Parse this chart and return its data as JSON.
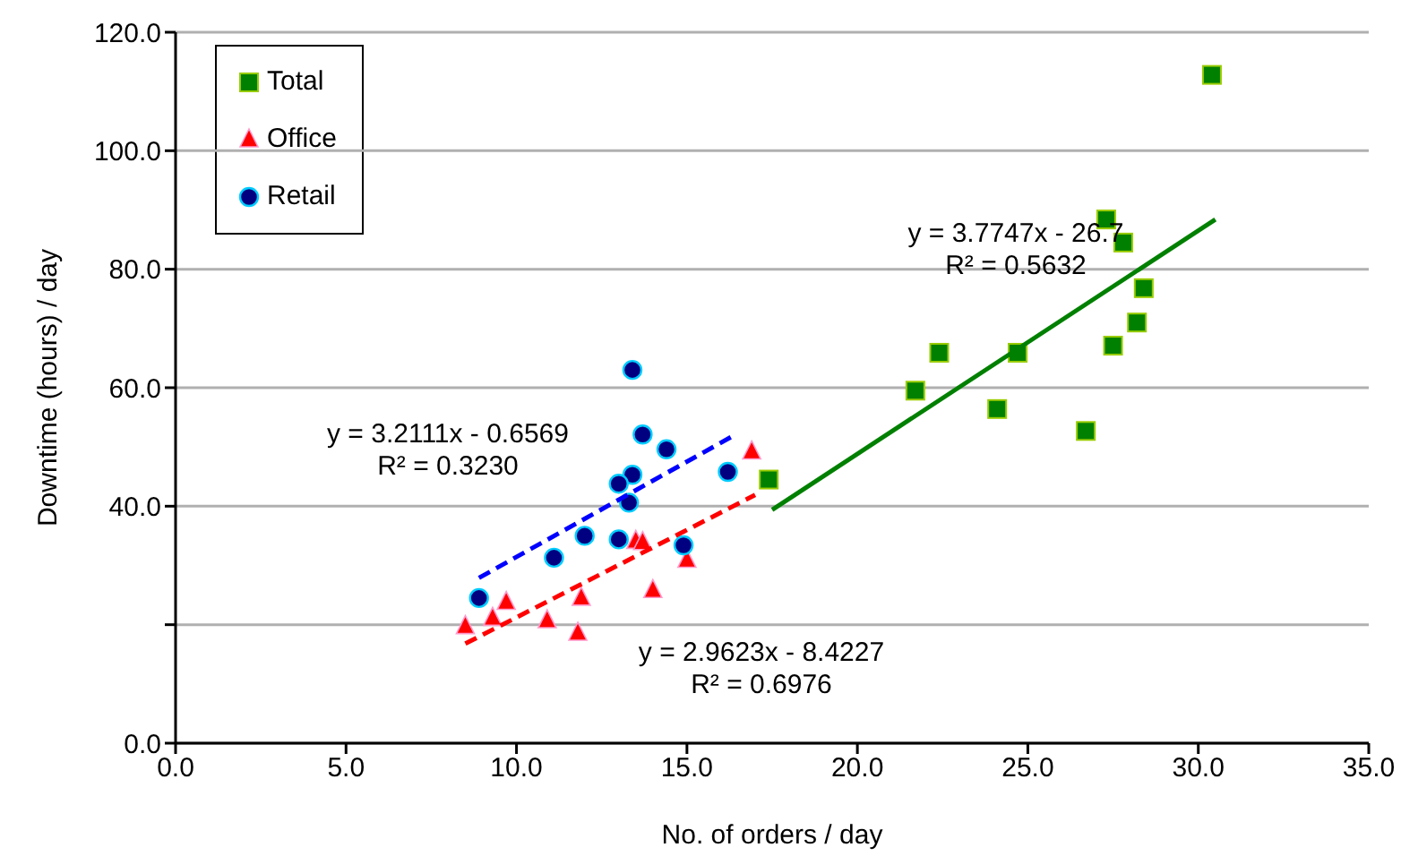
{
  "chart_data": {
    "type": "scatter",
    "xlabel": "No. of orders / day",
    "ylabel": "Downtime (hours) / day",
    "xlim": [
      0,
      35
    ],
    "xticks": [
      {
        "value": 0,
        "label": "0.0"
      },
      {
        "value": 5,
        "label": "5.0"
      },
      {
        "value": 10,
        "label": "10.0"
      },
      {
        "value": 15,
        "label": "15.0"
      },
      {
        "value": 20,
        "label": "20.0"
      },
      {
        "value": 25,
        "label": "25.0"
      },
      {
        "value": 30,
        "label": "30.0"
      },
      {
        "value": 35,
        "label": "35.0"
      }
    ],
    "ylim": [
      0,
      120
    ],
    "yticks": [
      {
        "value": 0,
        "label": "0.0"
      },
      {
        "value": 20,
        "label": null
      },
      {
        "value": 40,
        "label": "40.0"
      },
      {
        "value": 60,
        "label": "60.0"
      },
      {
        "value": 80,
        "label": "80.0"
      },
      {
        "value": 100,
        "label": "100.0"
      },
      {
        "value": 120,
        "label": "120.0"
      }
    ],
    "grid": "y",
    "legend": "top left",
    "series": [
      {
        "name": "Total",
        "color": "#008000",
        "marker": "square",
        "x": [
          17.4,
          21.7,
          22.4,
          24.1,
          24.7,
          26.7,
          27.3,
          27.5,
          27.8,
          28.2,
          28.4,
          30.4
        ],
        "values": [
          44.5,
          59.5,
          65.9,
          56.4,
          65.9,
          52.7,
          88.4,
          67.1,
          84.5,
          71.0,
          76.8,
          112.8
        ]
      },
      {
        "name": "Office",
        "color": "#ff0000",
        "marker": "triangle",
        "x": [
          16.9,
          13.5,
          13.7,
          15.0,
          14.0,
          9.7,
          11.9,
          9.3,
          8.5,
          10.9,
          11.8
        ],
        "values": [
          49.2,
          34.1,
          33.9,
          30.9,
          25.8,
          23.8,
          24.5,
          21.1,
          19.7,
          20.7,
          18.6
        ]
      },
      {
        "name": "Retail",
        "color": "#000080",
        "marker": "circle",
        "x": [
          13.4,
          13.7,
          14.4,
          16.2,
          13.4,
          13.0,
          13.3,
          12.0,
          13.0,
          14.9,
          11.1,
          8.9
        ],
        "values": [
          63.0,
          52.1,
          49.6,
          45.8,
          45.3,
          43.8,
          40.6,
          35.0,
          34.4,
          33.4,
          31.3,
          24.5
        ]
      },
      {
        "type": "line",
        "color": "#008000",
        "line_style": "solid",
        "x": [
          17.5,
          30.5
        ],
        "values": [
          39.4,
          88.4
        ]
      },
      {
        "type": "line",
        "color": "#ff0000",
        "line_style": "dashed",
        "x": [
          8.5,
          17
        ],
        "values": [
          16.8,
          41.9
        ]
      },
      {
        "type": "line",
        "color": "#0000ff",
        "line_style": "dashed",
        "x": [
          8.9,
          16.3
        ],
        "values": [
          27.9,
          51.7
        ]
      }
    ],
    "annotations": [
      "y = 3.7747x - 26.7\nR² = 0.5632",
      "y = 3.2111x - 0.6569\nR² = 0.3230",
      "y = 2.9623x - 8.4227\nR² = 0.6976"
    ]
  }
}
